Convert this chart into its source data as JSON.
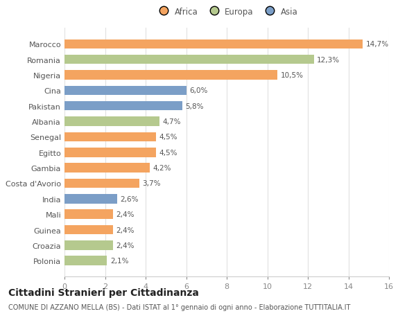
{
  "countries": [
    "Marocco",
    "Romania",
    "Nigeria",
    "Cina",
    "Pakistan",
    "Albania",
    "Senegal",
    "Egitto",
    "Gambia",
    "Costa d'Avorio",
    "India",
    "Mali",
    "Guinea",
    "Croazia",
    "Polonia"
  ],
  "values": [
    14.7,
    12.3,
    10.5,
    6.0,
    5.8,
    4.7,
    4.5,
    4.5,
    4.2,
    3.7,
    2.6,
    2.4,
    2.4,
    2.4,
    2.1
  ],
  "labels": [
    "14,7%",
    "12,3%",
    "10,5%",
    "6,0%",
    "5,8%",
    "4,7%",
    "4,5%",
    "4,5%",
    "4,2%",
    "3,7%",
    "2,6%",
    "2,4%",
    "2,4%",
    "2,4%",
    "2,1%"
  ],
  "continents": [
    "Africa",
    "Europa",
    "Africa",
    "Asia",
    "Asia",
    "Europa",
    "Africa",
    "Africa",
    "Africa",
    "Africa",
    "Asia",
    "Africa",
    "Africa",
    "Europa",
    "Europa"
  ],
  "colors": {
    "Africa": "#F4A460",
    "Europa": "#B5C98E",
    "Asia": "#7B9EC7"
  },
  "xlim": [
    0,
    16
  ],
  "xticks": [
    0,
    2,
    4,
    6,
    8,
    10,
    12,
    14,
    16
  ],
  "title": "Cittadini Stranieri per Cittadinanza",
  "subtitle": "COMUNE DI AZZANO MELLA (BS) - Dati ISTAT al 1° gennaio di ogni anno - Elaborazione TUTTITALIA.IT",
  "background_color": "#ffffff",
  "grid_color": "#e0e0e0",
  "bar_height": 0.6,
  "label_fontsize": 7.5,
  "title_fontsize": 10,
  "subtitle_fontsize": 7,
  "ytick_fontsize": 8,
  "xtick_fontsize": 8,
  "legend_fontsize": 8.5,
  "text_color": "#555555"
}
